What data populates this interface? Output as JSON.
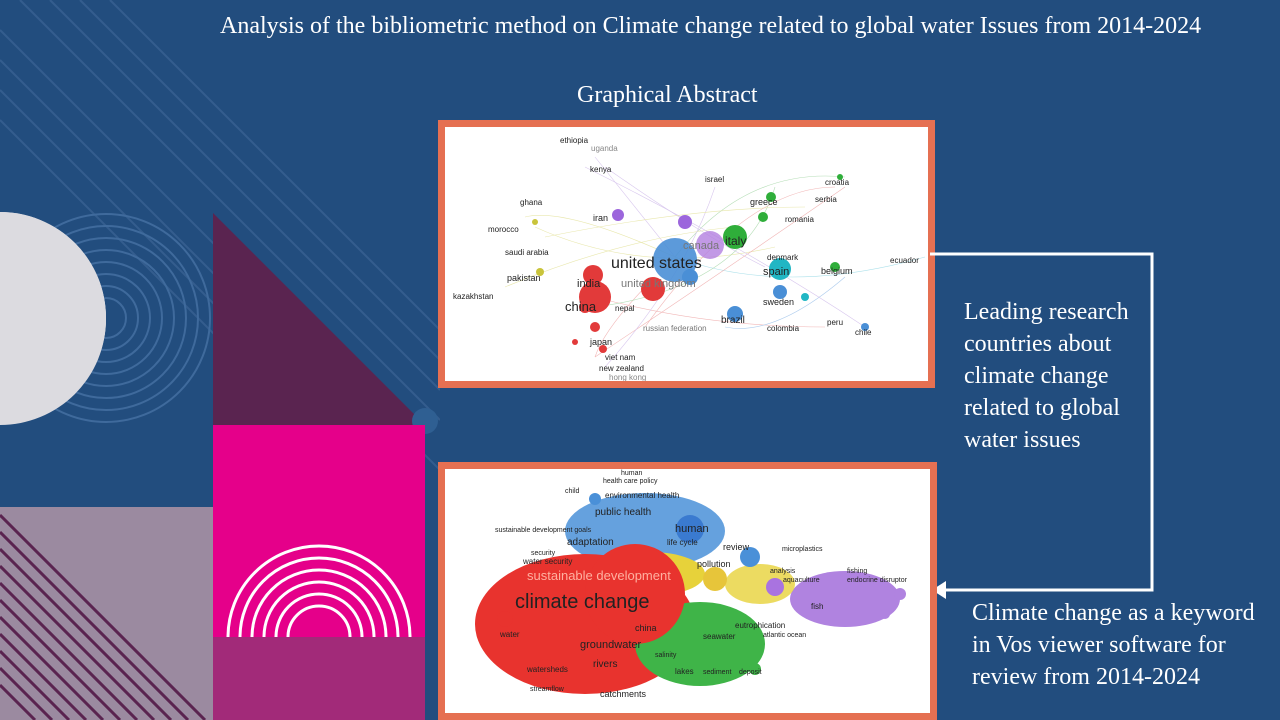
{
  "slide": {
    "title": "Analysis of the bibliometric method on  Climate change related to global water Issues from 2014-2024",
    "subtitle": "Graphical Abstract",
    "caption_top": "Leading research countries about climate change related to global water issues",
    "caption_bottom": "Climate change as a keyword  in Vos viewer software  for review from 2014-2024"
  },
  "country_map": {
    "labels": [
      "ethiopia",
      "uganda",
      "kenya",
      "israel",
      "croatia",
      "serbia",
      "greece",
      "romania",
      "ghana",
      "iran",
      "morocco",
      "italy",
      "canada",
      "united states",
      "denmark",
      "ecuador",
      "saudi arabia",
      "spain",
      "belgium",
      "pakistan",
      "india",
      "united kingdom",
      "kazakhstan",
      "sweden",
      "china",
      "nepal",
      "brazil",
      "peru",
      "colombia",
      "chile",
      "russian federation",
      "japan",
      "viet nam",
      "new zealand",
      "hong kong"
    ]
  },
  "keyword_map": {
    "labels": [
      "human",
      "health care policy",
      "child",
      "environmental health",
      "public health",
      "human",
      "sustainable development goals",
      "adaptation",
      "life cycle",
      "review",
      "microplastics",
      "security",
      "water security",
      "pollution",
      "analysis",
      "fishing",
      "aquaculture",
      "endocrine disruptor",
      "sustainable development",
      "climate change",
      "fish",
      "eutrophication",
      "china",
      "atlantic ocean",
      "groundwater",
      "seawater",
      "water",
      "salinity",
      "lakes",
      "watersheds",
      "rivers",
      "catchments",
      "streamflow",
      "sediment",
      "deposit"
    ]
  },
  "colors": {
    "background": "#224d7e",
    "frame_border": "#e57052",
    "magenta": "#e5008a",
    "plum": "#5a2450",
    "mauve": "#9b8aa0"
  }
}
